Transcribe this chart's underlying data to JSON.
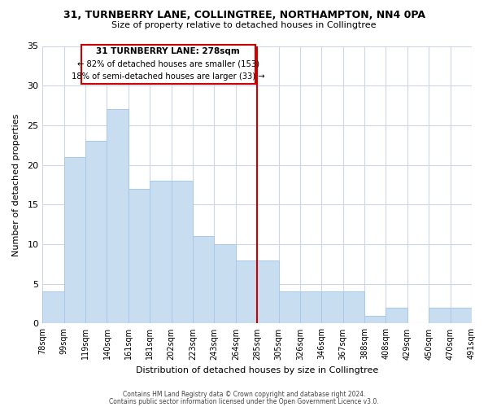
{
  "title_line1": "31, TURNBERRY LANE, COLLINGTREE, NORTHAMPTON, NN4 0PA",
  "title_line2": "Size of property relative to detached houses in Collingtree",
  "xlabel": "Distribution of detached houses by size in Collingtree",
  "ylabel": "Number of detached properties",
  "bar_labels": [
    "78sqm",
    "99sqm",
    "119sqm",
    "140sqm",
    "161sqm",
    "181sqm",
    "202sqm",
    "223sqm",
    "243sqm",
    "264sqm",
    "285sqm",
    "305sqm",
    "326sqm",
    "346sqm",
    "367sqm",
    "388sqm",
    "408sqm",
    "429sqm",
    "450sqm",
    "470sqm",
    "491sqm"
  ],
  "bar_values": [
    4,
    21,
    23,
    27,
    17,
    18,
    18,
    11,
    10,
    8,
    8,
    4,
    4,
    4,
    4,
    1,
    2,
    0,
    2,
    2
  ],
  "bar_color": "#c8ddf0",
  "bar_edge_color": "#a8c8e8",
  "vline_x": 10,
  "vline_color": "#cc0000",
  "ylim": [
    0,
    35
  ],
  "yticks": [
    0,
    5,
    10,
    15,
    20,
    25,
    30,
    35
  ],
  "annotation_title": "31 TURNBERRY LANE: 278sqm",
  "annotation_line1": "← 82% of detached houses are smaller (153)",
  "annotation_line2": "18% of semi-detached houses are larger (33) →",
  "annotation_box_color": "#ffffff",
  "annotation_box_edge": "#cc0000",
  "footer_line1": "Contains HM Land Registry data © Crown copyright and database right 2024.",
  "footer_line2": "Contains public sector information licensed under the Open Government Licence v3.0.",
  "background_color": "#ffffff",
  "grid_color": "#ccd6e8"
}
